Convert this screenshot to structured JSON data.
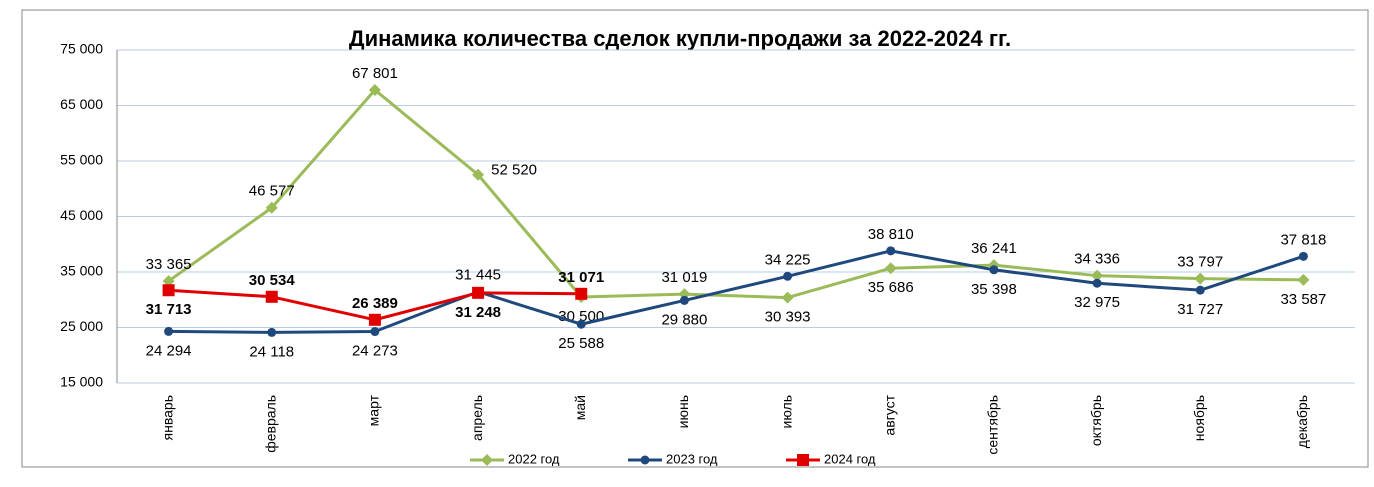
{
  "chart_data": {
    "type": "line",
    "title": "Динамика количества сделок купли-продажи за 2022-2024 гг.",
    "categories": [
      "январь",
      "февраль",
      "март",
      "апрель",
      "май",
      "июнь",
      "июль",
      "август",
      "сентябрь",
      "октябрь",
      "ноябрь",
      "декабрь"
    ],
    "series": [
      {
        "name": "2022 год",
        "color": "#9bbb59",
        "values": [
          33365,
          46577,
          67801,
          52520,
          30500,
          31019,
          30393,
          35686,
          36241,
          34336,
          33797,
          33587
        ],
        "value_labels": [
          "33 365",
          "46 577",
          "67 801",
          "52 520",
          "30 500",
          "31 019",
          "30 393",
          "35 686",
          "36 241",
          "34 336",
          "33 797",
          "33 587"
        ]
      },
      {
        "name": "2023 год",
        "color": "#1f497d",
        "values": [
          24294,
          24118,
          24273,
          31445,
          25588,
          29880,
          34225,
          38810,
          35398,
          32975,
          31727,
          37818
        ],
        "value_labels": [
          "24 294",
          "24 118",
          "24 273",
          "31 445",
          "25 588",
          "29 880",
          "34 225",
          "38 810",
          "35 398",
          "32 975",
          "31 727",
          "37 818"
        ]
      },
      {
        "name": "2024 год",
        "color": "#e00000",
        "values": [
          31713,
          30534,
          26389,
          31248,
          31071,
          null,
          null,
          null,
          null,
          null,
          null,
          null
        ],
        "value_labels": [
          "31 713",
          "30 534",
          "26 389",
          "31 248",
          "31 071",
          null,
          null,
          null,
          null,
          null,
          null,
          null
        ]
      }
    ],
    "ylim": [
      15000,
      75000
    ],
    "yticks": [
      {
        "value": 15000,
        "label": "15 000"
      },
      {
        "value": 25000,
        "label": "25 000"
      },
      {
        "value": 35000,
        "label": "35 000"
      },
      {
        "value": 45000,
        "label": "45 000"
      },
      {
        "value": 55000,
        "label": "55 000"
      },
      {
        "value": 65000,
        "label": "65 000"
      },
      {
        "value": 75000,
        "label": "75 000"
      }
    ],
    "grid": true
  }
}
